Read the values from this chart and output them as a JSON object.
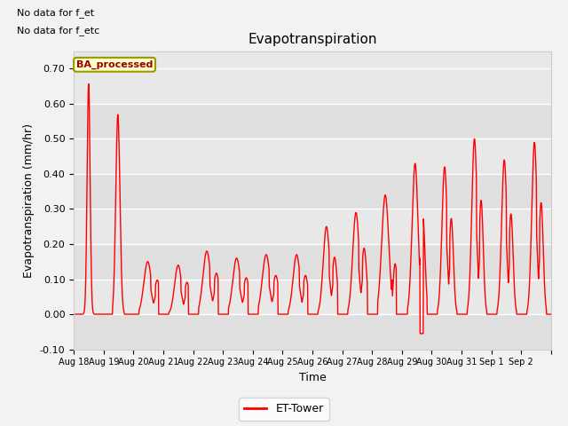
{
  "title": "Evapotranspiration",
  "xlabel": "Time",
  "ylabel": "Evapotranspiration (mm/hr)",
  "ylim": [
    -0.1,
    0.75
  ],
  "yticks": [
    -0.1,
    0.0,
    0.1,
    0.2,
    0.3,
    0.4,
    0.5,
    0.6,
    0.7
  ],
  "line_color": "red",
  "line_width": 1.0,
  "fig_bg_color": "#f2f2f2",
  "plot_bg_color": "#e8e8e8",
  "legend_label": "ET-Tower",
  "annotation1": "No data for f_et",
  "annotation2": "No data for f_etc",
  "box_label": "BA_processed",
  "x_tick_labels": [
    "Aug 18",
    "Aug 19",
    "Aug 20",
    "Aug 21",
    "Aug 22",
    "Aug 23",
    "Aug 24",
    "Aug 25",
    "Aug 26",
    "Aug 27",
    "Aug 28",
    "Aug 29",
    "Aug 30",
    "Aug 31",
    "Sep 1",
    "Sep 2"
  ],
  "figsize": [
    6.4,
    4.8
  ],
  "dpi": 100
}
